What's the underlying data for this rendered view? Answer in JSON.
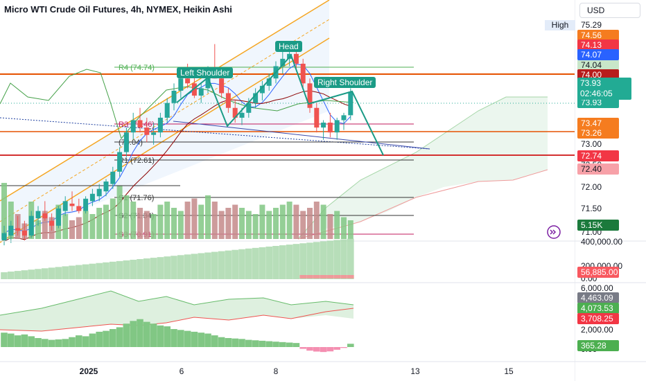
{
  "title": "Micro WTI Crude Oil Futures, 4h, NYMEX, Heikin Ashi",
  "currency": "USD",
  "high_label": "High",
  "time_axis": [
    "2025",
    "6",
    "8",
    "13",
    "15"
  ],
  "price_axis": {
    "ticks": [
      "75.29",
      "74.04",
      "73.00",
      "72.50",
      "72.00",
      "71.50",
      "71.00"
    ],
    "tags": [
      {
        "value": "74.56",
        "color": "#f57c1f"
      },
      {
        "value": "74.13",
        "color": "#f23645"
      },
      {
        "value": "74.07",
        "color": "#2962ff"
      },
      {
        "value": "74.00",
        "color": "#b71c1c"
      },
      {
        "value": "73.93",
        "color": "#22ab94"
      },
      {
        "value": "73.47",
        "color": "#f57c1f"
      },
      {
        "value": "73.26",
        "color": "#f57c1f"
      },
      {
        "value": "72.74",
        "color": "#f23645"
      },
      {
        "value": "72.40",
        "color": "#f7a1a8"
      },
      {
        "value": "5.15K",
        "color": "#1b7a3c"
      }
    ],
    "countdown": {
      "price": "73.93",
      "time": "02:46:05"
    }
  },
  "volume_axis": {
    "ticks": [
      "400,000.00",
      "200,000.00",
      "0.00"
    ],
    "tag": "56,885.00"
  },
  "oscillator_axis": {
    "ticks": [
      "6,000.00",
      "2,000.00",
      "0.00"
    ],
    "tags": [
      {
        "value": "4,463.09",
        "color": "#787b86"
      },
      {
        "value": "4,073.53",
        "color": "#4caf50"
      },
      {
        "value": "3,708.25",
        "color": "#f23645"
      },
      {
        "value": "365.28",
        "color": "#4caf50"
      }
    ]
  },
  "pattern_labels": [
    "Left Shoulder",
    "Head",
    "Right Shoulder"
  ],
  "pivot_levels": [
    {
      "label": "R4 (74.74)",
      "value": 74.74
    },
    {
      "label": "R3 (73.46)",
      "value": 73.46
    },
    {
      "label": "(73.04)",
      "value": 73.04
    },
    {
      "label": "R1 (72.61)",
      "value": 72.61
    },
    {
      "label": "S1 (71.76)",
      "value": 71.76
    },
    {
      "label": "S2 (71.34)",
      "value": 71.34
    },
    {
      "label": "S3 (70.91)",
      "value": 70.91
    }
  ],
  "chart_data": {
    "type": "candlestick",
    "title": "Micro WTI Crude Oil Futures, 4h, NYMEX, Heikin Ashi",
    "ylim": [
      70.85,
      75.4
    ],
    "candles": [
      {
        "o": 70.9,
        "h": 71.2,
        "l": 70.8,
        "c": 71.05
      },
      {
        "o": 71.0,
        "h": 71.3,
        "l": 70.85,
        "c": 71.2
      },
      {
        "o": 71.15,
        "h": 71.4,
        "l": 71.0,
        "c": 71.1
      },
      {
        "o": 71.1,
        "h": 71.3,
        "l": 70.9,
        "c": 71.0
      },
      {
        "o": 71.0,
        "h": 71.5,
        "l": 70.95,
        "c": 71.4
      },
      {
        "o": 71.35,
        "h": 71.6,
        "l": 71.2,
        "c": 71.5
      },
      {
        "o": 71.45,
        "h": 71.7,
        "l": 71.3,
        "c": 71.35
      },
      {
        "o": 71.3,
        "h": 71.45,
        "l": 71.1,
        "c": 71.2
      },
      {
        "o": 71.2,
        "h": 71.6,
        "l": 71.15,
        "c": 71.55
      },
      {
        "o": 71.5,
        "h": 71.8,
        "l": 71.4,
        "c": 71.7
      },
      {
        "o": 71.65,
        "h": 71.9,
        "l": 71.5,
        "c": 71.6
      },
      {
        "o": 71.6,
        "h": 71.75,
        "l": 71.45,
        "c": 71.5
      },
      {
        "o": 71.5,
        "h": 71.8,
        "l": 71.45,
        "c": 71.75
      },
      {
        "o": 71.7,
        "h": 71.95,
        "l": 71.6,
        "c": 71.85
      },
      {
        "o": 71.8,
        "h": 72.05,
        "l": 71.7,
        "c": 71.95
      },
      {
        "o": 71.9,
        "h": 72.15,
        "l": 71.8,
        "c": 72.1
      },
      {
        "o": 72.05,
        "h": 72.4,
        "l": 71.95,
        "c": 72.3
      },
      {
        "o": 72.3,
        "h": 72.8,
        "l": 72.2,
        "c": 72.7
      },
      {
        "o": 72.7,
        "h": 73.2,
        "l": 72.6,
        "c": 73.1
      },
      {
        "o": 73.1,
        "h": 73.5,
        "l": 72.95,
        "c": 73.35
      },
      {
        "o": 73.35,
        "h": 73.6,
        "l": 73.1,
        "c": 73.2
      },
      {
        "o": 73.2,
        "h": 73.4,
        "l": 72.9,
        "c": 73.05
      },
      {
        "o": 73.05,
        "h": 73.3,
        "l": 72.85,
        "c": 73.1
      },
      {
        "o": 73.1,
        "h": 73.5,
        "l": 73.0,
        "c": 73.4
      },
      {
        "o": 73.4,
        "h": 73.8,
        "l": 73.3,
        "c": 73.7
      },
      {
        "o": 73.7,
        "h": 74.1,
        "l": 73.55,
        "c": 73.95
      },
      {
        "o": 73.95,
        "h": 74.4,
        "l": 73.8,
        "c": 74.2
      },
      {
        "o": 74.2,
        "h": 74.5,
        "l": 74.0,
        "c": 74.1
      },
      {
        "o": 74.1,
        "h": 74.3,
        "l": 73.8,
        "c": 73.85
      },
      {
        "o": 73.85,
        "h": 74.1,
        "l": 73.7,
        "c": 74.0
      },
      {
        "o": 74.0,
        "h": 74.45,
        "l": 73.9,
        "c": 74.35
      },
      {
        "o": 74.35,
        "h": 74.9,
        "l": 74.2,
        "c": 74.2
      },
      {
        "o": 74.2,
        "h": 74.3,
        "l": 73.8,
        "c": 73.9
      },
      {
        "o": 73.9,
        "h": 74.0,
        "l": 73.5,
        "c": 73.6
      },
      {
        "o": 73.6,
        "h": 73.75,
        "l": 73.3,
        "c": 73.4
      },
      {
        "o": 73.4,
        "h": 73.6,
        "l": 73.25,
        "c": 73.5
      },
      {
        "o": 73.5,
        "h": 73.8,
        "l": 73.4,
        "c": 73.7
      },
      {
        "o": 73.7,
        "h": 74.0,
        "l": 73.6,
        "c": 73.9
      },
      {
        "o": 73.9,
        "h": 74.15,
        "l": 73.75,
        "c": 74.05
      },
      {
        "o": 74.05,
        "h": 74.3,
        "l": 73.95,
        "c": 74.2
      },
      {
        "o": 74.2,
        "h": 74.55,
        "l": 74.1,
        "c": 74.45
      },
      {
        "o": 74.45,
        "h": 74.75,
        "l": 74.3,
        "c": 74.6
      },
      {
        "o": 74.6,
        "h": 74.9,
        "l": 74.45,
        "c": 74.7
      },
      {
        "o": 74.7,
        "h": 74.85,
        "l": 74.4,
        "c": 74.5
      },
      {
        "o": 74.5,
        "h": 74.6,
        "l": 74.0,
        "c": 74.1
      },
      {
        "o": 74.1,
        "h": 74.2,
        "l": 73.5,
        "c": 73.6
      },
      {
        "o": 73.6,
        "h": 73.7,
        "l": 73.1,
        "c": 73.2
      },
      {
        "o": 73.2,
        "h": 73.35,
        "l": 72.95,
        "c": 73.3
      },
      {
        "o": 73.3,
        "h": 73.5,
        "l": 73.0,
        "c": 73.1
      },
      {
        "o": 73.1,
        "h": 73.4,
        "l": 72.95,
        "c": 73.35
      },
      {
        "o": 73.35,
        "h": 73.5,
        "l": 73.15,
        "c": 73.45
      },
      {
        "o": 73.45,
        "h": 74.0,
        "l": 73.35,
        "c": 73.93
      }
    ],
    "volume": [
      90,
      60,
      40,
      25,
      60,
      30,
      45,
      35,
      55,
      40,
      30,
      35,
      45,
      40,
      50,
      55,
      65,
      85,
      70,
      60,
      50,
      45,
      40,
      55,
      60,
      50,
      45,
      60,
      65,
      55,
      70,
      60,
      45,
      50,
      55,
      50,
      45,
      40,
      55,
      45,
      50,
      55,
      60,
      55,
      45,
      50,
      60,
      55,
      40,
      45,
      35,
      30
    ],
    "osc_hist": [
      1600,
      1500,
      1300,
      1400,
      1200,
      1000,
      900,
      800,
      850,
      900,
      1100,
      1300,
      1200,
      1500,
      1700,
      1800,
      2000,
      2200,
      2600,
      2900,
      3100,
      2800,
      2600,
      2400,
      2300,
      2000,
      1900,
      1800,
      1700,
      1600,
      1500,
      1300,
      1100,
      1000,
      950,
      900,
      800,
      750,
      700,
      650,
      600,
      550,
      500,
      450,
      -200,
      -400,
      -500,
      -550,
      -480,
      -300,
      -100,
      365.28
    ]
  }
}
